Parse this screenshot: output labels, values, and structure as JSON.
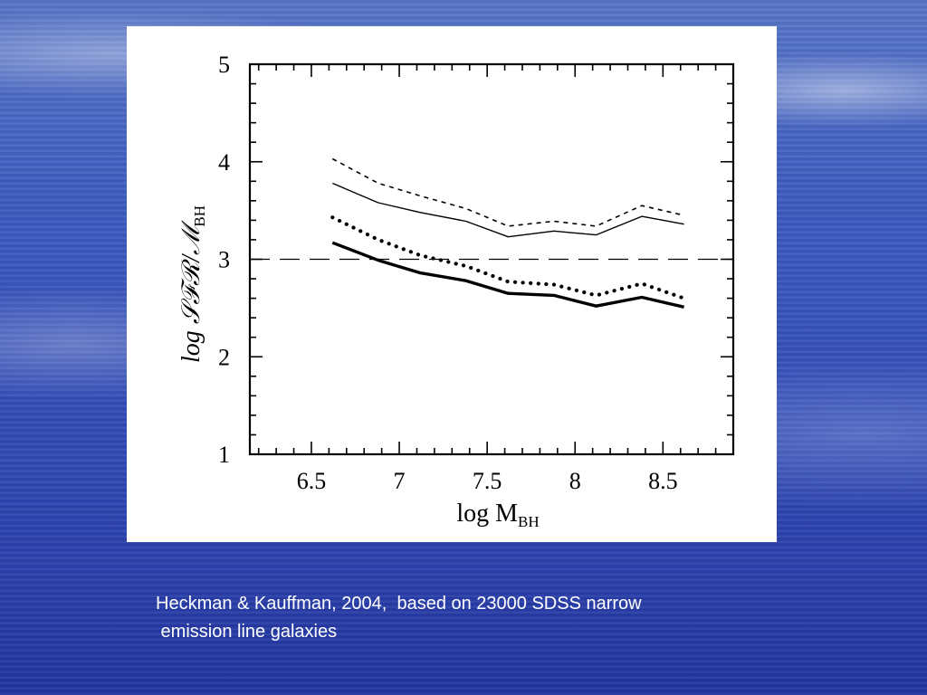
{
  "caption": {
    "line1": "Heckman & Kauffman, 2004,  based on 23000 SDSS narrow",
    "line2": " emission line galaxies"
  },
  "chart_data": {
    "type": "line",
    "xlabel": "log  M",
    "xlabel_sub": "BH",
    "ylabel": "log 𝒮ℱℛ/ℳ",
    "ylabel_sub": "BH",
    "xlim": [
      6.15,
      8.9
    ],
    "ylim": [
      1,
      5
    ],
    "x_ticks": [
      6.5,
      7,
      7.5,
      8,
      8.5
    ],
    "x_tick_labels": [
      "6.5",
      "7",
      "7.5",
      "8",
      "8.5"
    ],
    "y_ticks": [
      1,
      2,
      3,
      4,
      5
    ],
    "y_tick_labels": [
      "1",
      "2",
      "3",
      "4",
      "5"
    ],
    "reference_line": {
      "y": 3,
      "style": "dashed"
    },
    "grid": false,
    "series": [
      {
        "style": "short-dash",
        "x": [
          6.62,
          6.88,
          7.12,
          7.38,
          7.62,
          7.88,
          8.12,
          8.38,
          8.62
        ],
        "y": [
          4.03,
          3.78,
          3.65,
          3.52,
          3.34,
          3.39,
          3.34,
          3.55,
          3.45
        ]
      },
      {
        "style": "thin-solid",
        "x": [
          6.62,
          6.88,
          7.12,
          7.38,
          7.62,
          7.88,
          8.12,
          8.38,
          8.62
        ],
        "y": [
          3.78,
          3.58,
          3.48,
          3.39,
          3.23,
          3.29,
          3.25,
          3.44,
          3.36
        ]
      },
      {
        "style": "thick-dotted",
        "x": [
          6.62,
          6.88,
          7.12,
          7.38,
          7.62,
          7.88,
          8.12,
          8.38,
          8.62
        ],
        "y": [
          3.43,
          3.2,
          3.04,
          2.93,
          2.77,
          2.74,
          2.63,
          2.75,
          2.6
        ]
      },
      {
        "style": "thick-solid",
        "x": [
          6.62,
          6.88,
          7.12,
          7.38,
          7.62,
          7.88,
          8.12,
          8.38,
          8.62
        ],
        "y": [
          3.17,
          2.99,
          2.86,
          2.78,
          2.65,
          2.63,
          2.52,
          2.61,
          2.51
        ]
      }
    ],
    "colors": {
      "axes": "#000000",
      "panel": "#ffffff",
      "caption_text": "#ffffff"
    }
  }
}
